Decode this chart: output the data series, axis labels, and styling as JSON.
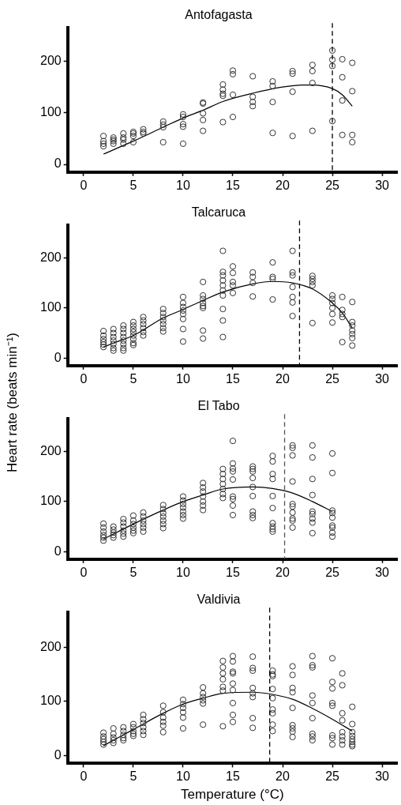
{
  "chart_data": [
    {
      "type": "scatter",
      "title": "Antofagasta",
      "xlim": [
        -1.6,
        31.5
      ],
      "ylim": [
        -15,
        265
      ],
      "xticks": [
        0,
        5,
        10,
        15,
        20,
        25,
        30
      ],
      "yticks": [
        0,
        100,
        200
      ],
      "grid": false,
      "marker": "circle",
      "legend": false,
      "ref_lines": [
        {
          "axis": "x",
          "value": 25,
          "line_style": "dashed",
          "color": "#000000"
        }
      ],
      "series": [
        {
          "type": "scatter",
          "color": "#333333",
          "x": [
            2,
            2,
            2,
            2,
            3,
            3,
            3,
            3,
            4,
            4,
            4,
            4,
            5,
            5,
            5,
            5,
            6,
            6,
            6,
            8,
            8,
            8,
            8,
            10,
            10,
            10,
            10,
            10,
            12,
            12,
            12,
            12,
            12,
            14,
            14,
            14,
            14,
            14,
            15,
            15,
            15,
            15,
            17,
            17,
            17,
            17,
            19,
            19,
            19,
            19,
            21,
            21,
            21,
            21,
            23,
            23,
            23,
            23,
            25,
            25,
            25,
            25,
            26,
            26,
            26,
            26,
            27,
            27,
            27,
            27
          ],
          "values": [
            55,
            45,
            40,
            35,
            52,
            48,
            45,
            40,
            60,
            52,
            48,
            40,
            63,
            60,
            55,
            43,
            68,
            63,
            60,
            83,
            77,
            72,
            43,
            97,
            92,
            78,
            73,
            40,
            120,
            118,
            99,
            86,
            65,
            155,
            145,
            137,
            133,
            82,
            182,
            175,
            135,
            92,
            171,
            131,
            121,
            113,
            161,
            152,
            121,
            61,
            181,
            176,
            141,
            55,
            193,
            181,
            158,
            65,
            221,
            203,
            191,
            84,
            204,
            169,
            124,
            57,
            197,
            142,
            57,
            43
          ]
        },
        {
          "type": "line",
          "color": "#000000",
          "marker": "none",
          "x": [
            2,
            5,
            8,
            10,
            12,
            14,
            17,
            20,
            22,
            23,
            25,
            26,
            27
          ],
          "values": [
            20,
            45,
            72,
            90,
            105,
            122,
            138,
            150,
            154,
            154,
            147,
            135,
            113
          ]
        }
      ]
    },
    {
      "type": "scatter",
      "title": "Talcaruca",
      "ylabel": "Heart rate (beats min⁻¹)",
      "xlim": [
        -1.6,
        31.5
      ],
      "ylim": [
        -15,
        265
      ],
      "xticks": [
        0,
        5,
        10,
        15,
        20,
        25,
        30
      ],
      "yticks": [
        0,
        100,
        200
      ],
      "grid": false,
      "marker": "circle",
      "legend": false,
      "ref_lines": [
        {
          "axis": "x",
          "value": 21.7,
          "line_style": "dashed",
          "color": "#000000"
        }
      ],
      "series": [
        {
          "type": "scatter",
          "color": "#333333",
          "x": [
            2,
            2,
            2,
            2,
            2,
            2,
            3,
            3,
            3,
            3,
            3,
            3,
            3,
            4,
            4,
            4,
            4,
            4,
            4,
            4,
            4,
            5,
            5,
            5,
            5,
            5,
            5,
            5,
            5,
            6,
            6,
            6,
            6,
            6,
            6,
            8,
            8,
            8,
            8,
            8,
            8,
            8,
            10,
            10,
            10,
            10,
            10,
            10,
            10,
            10,
            12,
            12,
            12,
            12,
            12,
            12,
            12,
            12,
            14,
            14,
            14,
            14,
            14,
            14,
            14,
            14,
            14,
            14,
            15,
            15,
            15,
            15,
            15,
            17,
            17,
            17,
            17,
            19,
            19,
            19,
            19,
            21,
            21,
            21,
            21,
            21,
            21,
            21,
            23,
            23,
            23,
            23,
            23,
            25,
            25,
            25,
            25,
            25,
            25,
            26,
            26,
            26,
            26,
            26,
            27,
            27,
            27,
            27,
            27,
            27,
            27
          ],
          "values": [
            54,
            45,
            38,
            32,
            27,
            22,
            58,
            50,
            42,
            35,
            28,
            20,
            15,
            65,
            58,
            50,
            42,
            35,
            28,
            20,
            15,
            72,
            65,
            58,
            52,
            45,
            38,
            30,
            26,
            82,
            75,
            68,
            60,
            52,
            45,
            98,
            90,
            82,
            75,
            68,
            60,
            53,
            122,
            110,
            102,
            95,
            88,
            78,
            58,
            33,
            152,
            125,
            118,
            110,
            104,
            100,
            55,
            39,
            214,
            172,
            165,
            155,
            145,
            135,
            125,
            98,
            75,
            42,
            183,
            170,
            152,
            145,
            130,
            171,
            162,
            150,
            123,
            191,
            162,
            158,
            117,
            214,
            171,
            165,
            142,
            122,
            111,
            84,
            164,
            158,
            152,
            145,
            70,
            125,
            118,
            110,
            100,
            88,
            71,
            122,
            96,
            88,
            82,
            32,
            112,
            72,
            65,
            55,
            48,
            40,
            25
          ]
        },
        {
          "type": "line",
          "color": "#000000",
          "marker": "none",
          "x": [
            2,
            3,
            5,
            8,
            10,
            12,
            14,
            17,
            19,
            21,
            23,
            25,
            26,
            27
          ],
          "values": [
            22,
            30,
            45,
            80,
            97,
            115,
            132,
            148,
            153,
            150,
            138,
            110,
            90,
            60
          ]
        }
      ]
    },
    {
      "type": "scatter",
      "title": "El Tabo",
      "xlim": [
        -1.6,
        31.5
      ],
      "ylim": [
        -15,
        265
      ],
      "xticks": [
        0,
        5,
        10,
        15,
        20,
        25,
        30
      ],
      "yticks": [
        0,
        100,
        200
      ],
      "grid": false,
      "marker": "circle",
      "legend": false,
      "ref_lines": [
        {
          "axis": "x",
          "value": 20.2,
          "line_style": "dashed",
          "color": "#555555"
        }
      ],
      "series": [
        {
          "type": "scatter",
          "color": "#333333",
          "x": [
            2,
            2,
            2,
            2,
            2,
            2,
            3,
            3,
            3,
            3,
            3,
            4,
            4,
            4,
            4,
            4,
            4,
            5,
            5,
            5,
            5,
            5,
            5,
            6,
            6,
            6,
            6,
            6,
            6,
            8,
            8,
            8,
            8,
            8,
            8,
            8,
            10,
            10,
            10,
            10,
            10,
            10,
            10,
            12,
            12,
            12,
            12,
            12,
            12,
            12,
            14,
            14,
            14,
            14,
            14,
            14,
            14,
            15,
            15,
            15,
            15,
            15,
            15,
            15,
            15,
            15,
            17,
            17,
            17,
            17,
            17,
            17,
            17,
            17,
            17,
            19,
            19,
            19,
            19,
            19,
            19,
            19,
            19,
            19,
            19,
            21,
            21,
            21,
            21,
            21,
            21,
            21,
            21,
            21,
            21,
            23,
            23,
            23,
            23,
            23,
            23,
            23,
            23,
            23,
            25,
            25,
            25,
            25,
            25,
            25,
            25,
            25,
            25
          ],
          "values": [
            56,
            48,
            40,
            33,
            28,
            22,
            50,
            44,
            38,
            33,
            28,
            65,
            58,
            50,
            42,
            36,
            30,
            72,
            62,
            55,
            48,
            42,
            37,
            78,
            70,
            62,
            55,
            48,
            40,
            93,
            85,
            77,
            70,
            62,
            55,
            47,
            110,
            102,
            95,
            88,
            80,
            73,
            66,
            137,
            128,
            120,
            110,
            100,
            92,
            83,
            165,
            155,
            145,
            135,
            125,
            115,
            107,
            221,
            176,
            166,
            160,
            144,
            110,
            105,
            92,
            73,
            170,
            165,
            160,
            147,
            129,
            111,
            80,
            73,
            67,
            191,
            180,
            155,
            145,
            111,
            87,
            57,
            50,
            45,
            40,
            212,
            207,
            192,
            140,
            95,
            90,
            78,
            66,
            62,
            48,
            212,
            188,
            145,
            113,
            80,
            75,
            66,
            58,
            37,
            196,
            157,
            82,
            77,
            68,
            52,
            48,
            38,
            30
          ]
        },
        {
          "type": "line",
          "color": "#000000",
          "marker": "none",
          "x": [
            2,
            5,
            8,
            10,
            12,
            14,
            17,
            19,
            21,
            23,
            25
          ],
          "values": [
            25,
            55,
            83,
            100,
            113,
            125,
            129,
            126,
            117,
            100,
            80
          ]
        }
      ]
    },
    {
      "type": "scatter",
      "title": "Valdivia",
      "xlabel": "Temperature (°C)",
      "xlim": [
        -1.6,
        31.5
      ],
      "ylim": [
        -15,
        265
      ],
      "xticks": [
        0,
        5,
        10,
        15,
        20,
        25,
        30
      ],
      "yticks": [
        0,
        100,
        200
      ],
      "grid": false,
      "marker": "circle",
      "legend": false,
      "ref_lines": [
        {
          "axis": "x",
          "value": 18.7,
          "line_style": "dashed",
          "color": "#000000"
        }
      ],
      "series": [
        {
          "type": "scatter",
          "color": "#333333",
          "x": [
            2,
            2,
            2,
            2,
            2,
            3,
            3,
            3,
            3,
            3,
            4,
            4,
            4,
            4,
            4,
            5,
            5,
            5,
            5,
            5,
            6,
            6,
            6,
            6,
            6,
            6,
            8,
            8,
            8,
            8,
            8,
            8,
            10,
            10,
            10,
            10,
            10,
            10,
            12,
            12,
            12,
            12,
            12,
            12,
            14,
            14,
            14,
            14,
            14,
            14,
            14,
            15,
            15,
            15,
            15,
            15,
            15,
            15,
            15,
            15,
            17,
            17,
            17,
            17,
            17,
            17,
            17,
            17,
            19,
            19,
            19,
            19,
            19,
            19,
            19,
            19,
            19,
            21,
            21,
            21,
            21,
            21,
            21,
            21,
            21,
            21,
            23,
            23,
            23,
            23,
            23,
            23,
            23,
            23,
            23,
            25,
            25,
            25,
            25,
            25,
            25,
            25,
            25,
            26,
            26,
            26,
            26,
            26,
            26,
            26,
            26,
            27,
            27,
            27,
            27,
            27,
            27,
            27,
            27
          ],
          "values": [
            42,
            35,
            30,
            25,
            20,
            50,
            40,
            33,
            28,
            23,
            52,
            45,
            38,
            32,
            28,
            58,
            52,
            45,
            40,
            36,
            75,
            67,
            60,
            52,
            45,
            38,
            92,
            80,
            70,
            62,
            55,
            43,
            103,
            95,
            88,
            80,
            70,
            50,
            126,
            115,
            108,
            102,
            96,
            57,
            175,
            163,
            152,
            141,
            127,
            120,
            54,
            184,
            174,
            155,
            152,
            133,
            121,
            97,
            75,
            62,
            183,
            162,
            157,
            125,
            115,
            108,
            69,
            51,
            157,
            150,
            147,
            123,
            106,
            85,
            78,
            57,
            45,
            165,
            149,
            125,
            117,
            88,
            56,
            50,
            44,
            34,
            184,
            167,
            163,
            111,
            97,
            69,
            40,
            35,
            28,
            180,
            136,
            124,
            97,
            92,
            37,
            32,
            20,
            152,
            130,
            78,
            65,
            43,
            35,
            28,
            20,
            90,
            58,
            43,
            36,
            30,
            25,
            20,
            17
          ]
        },
        {
          "type": "line",
          "color": "#000000",
          "marker": "none",
          "x": [
            2,
            5,
            8,
            10,
            12,
            14,
            17,
            19,
            21,
            23,
            25,
            27
          ],
          "values": [
            18,
            48,
            78,
            95,
            106,
            115,
            117,
            113,
            104,
            87,
            67,
            45
          ]
        }
      ]
    }
  ]
}
